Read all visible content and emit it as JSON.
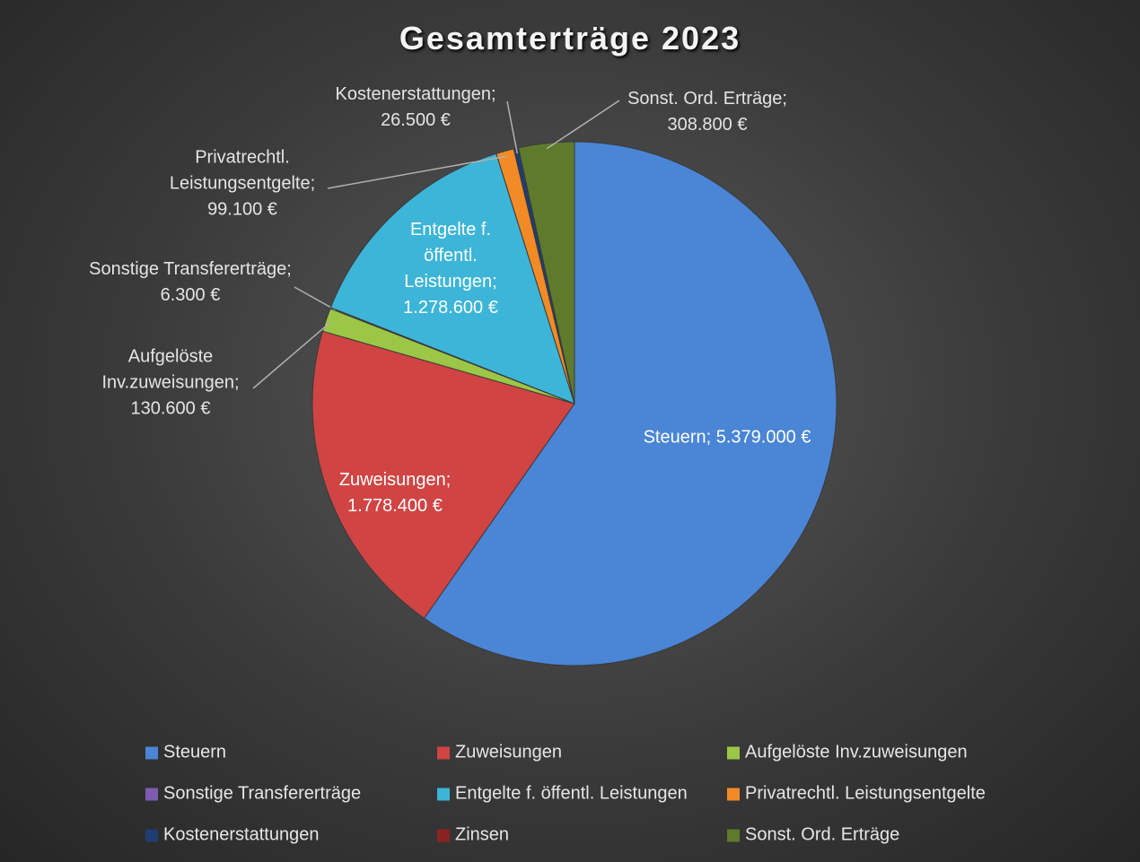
{
  "chart_data": {
    "type": "pie",
    "title": "Gesamterträge 2023",
    "categories": [
      "Steuern",
      "Zuweisungen",
      "Aufgelöste Inv.zuweisungen",
      "Sonstige Transfererträge",
      "Entgelte f. öffentl. Leistungen",
      "Privatrechtl. Leistungsentgelte",
      "Kostenerstattungen",
      "Zinsen",
      "Sonst. Ord. Erträge"
    ],
    "values": [
      5379000,
      1778400,
      130600,
      6300,
      1278600,
      99100,
      26500,
      0,
      308800
    ],
    "value_labels": [
      "Steuern;  5.379.000 €",
      "Zuweisungen; 1.778.400 €",
      "Aufgelöste Inv.zuweisungen; 130.600 €",
      "Sonstige Transfererträge;  6.300 €",
      "Entgelte f. öffentl. Leistungen; 1.278.600 €",
      "Privatrechtl. Leistungsentgelte; 99.100 €",
      "Kostenerstattungen; 26.500 €",
      null,
      "Sonst. Ord. Erträge; 308.800 €"
    ],
    "colors": [
      "#4a85d6",
      "#d04444",
      "#9cc646",
      "#7e5bb0",
      "#3cb5d8",
      "#f28a26",
      "#1f3d70",
      "#8b2222",
      "#5e7a2b"
    ],
    "legend": "bottom"
  }
}
